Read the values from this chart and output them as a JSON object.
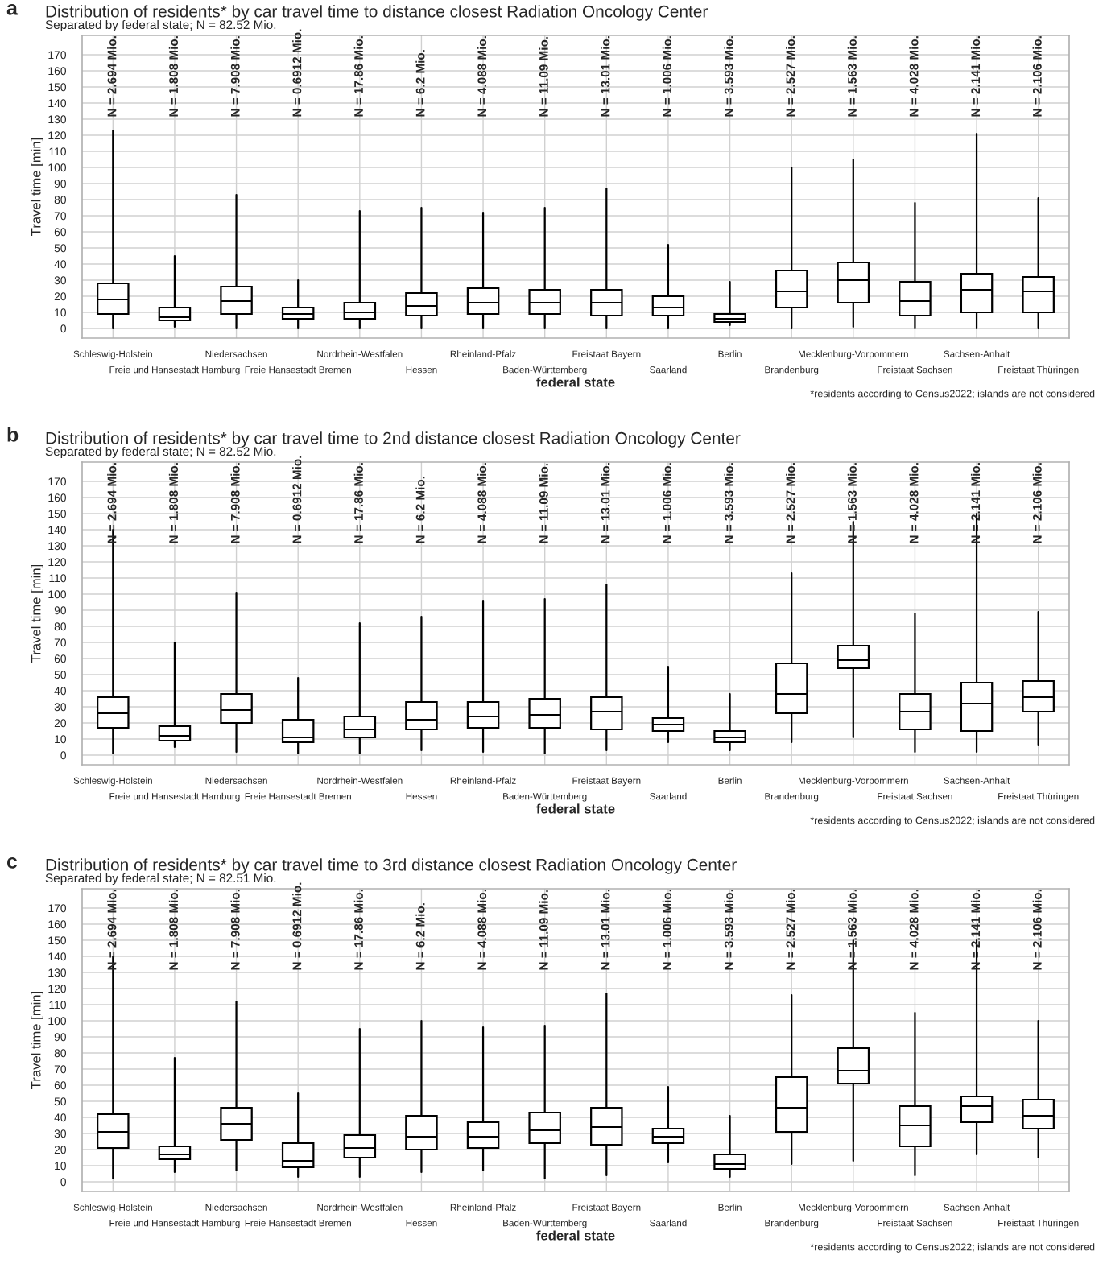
{
  "chart_data": [
    {
      "type": "box",
      "title": "Distribution of residents* by car travel time to distance closest Radiation Oncology Center",
      "subtitle": "Separated by federal state; N = 82.52 Mio.",
      "xlabel": "federal state",
      "ylabel": "Travel time [min]",
      "categories": [
        "Schleswig-Holstein",
        "Freie und Hansestadt Hamburg",
        "Niedersachsen",
        "Freie Hansestadt Bremen",
        "Nordrhein-Westfalen",
        "Hessen",
        "Rheinland-Pfalz",
        "Baden-Württemberg",
        "Freistaat Bayern",
        "Saarland",
        "Berlin",
        "Brandenburg",
        "Mecklenburg-Vorpommern",
        "Freistaat Sachsen",
        "Sachsen-Anhalt",
        "Freistaat Thüringen"
      ],
      "boxes": [
        {
          "low": 0,
          "q1": 9,
          "median": 18,
          "q3": 28,
          "high": 123
        },
        {
          "low": 1,
          "q1": 5,
          "median": 7,
          "q3": 13,
          "high": 45
        },
        {
          "low": 0,
          "q1": 9,
          "median": 17,
          "q3": 26,
          "high": 83
        },
        {
          "low": 0,
          "q1": 6,
          "median": 9,
          "q3": 13,
          "high": 30
        },
        {
          "low": 0,
          "q1": 6,
          "median": 10,
          "q3": 16,
          "high": 73
        },
        {
          "low": 0,
          "q1": 8,
          "median": 14,
          "q3": 22,
          "high": 75
        },
        {
          "low": 0,
          "q1": 9,
          "median": 16,
          "q3": 25,
          "high": 72
        },
        {
          "low": 0,
          "q1": 9,
          "median": 16,
          "q3": 24,
          "high": 75
        },
        {
          "low": 0,
          "q1": 8,
          "median": 16,
          "q3": 24,
          "high": 87
        },
        {
          "low": 0,
          "q1": 8,
          "median": 13,
          "q3": 20,
          "high": 52
        },
        {
          "low": 2,
          "q1": 4,
          "median": 6,
          "q3": 9,
          "high": 29
        },
        {
          "low": 0,
          "q1": 13,
          "median": 23,
          "q3": 36,
          "high": 100
        },
        {
          "low": 1,
          "q1": 16,
          "median": 30,
          "q3": 41,
          "high": 105
        },
        {
          "low": 0,
          "q1": 8,
          "median": 17,
          "q3": 29,
          "high": 78
        },
        {
          "low": 0,
          "q1": 10,
          "median": 24,
          "q3": 34,
          "high": 121
        },
        {
          "low": 0,
          "q1": 10,
          "median": 23,
          "q3": 32,
          "high": 81
        }
      ],
      "ylim": [
        -6,
        182
      ],
      "yticks": [
        0,
        10,
        20,
        30,
        40,
        50,
        60,
        70,
        80,
        90,
        100,
        110,
        120,
        130,
        140,
        150,
        160,
        170
      ],
      "grid": true,
      "annotations": [
        "a",
        "N = 2.694 Mio.",
        "N = 1.808 Mio.",
        "N = 7.908 Mio.",
        "N = 0.6912 Mio.",
        "N = 17.86 Mio.",
        "N = 6.2 Mio.",
        "N = 4.088 Mio.",
        "N = 11.09 Mio.",
        "N = 13.01 Mio.",
        "N = 1.006 Mio.",
        "N = 3.593 Mio.",
        "N = 2.527 Mio.",
        "N = 1.563 Mio.",
        "N = 4.028 Mio.",
        "N = 2.141 Mio.",
        "N = 2.106 Mio.",
        "*residents according to Census2022; islands are not considered"
      ]
    },
    {
      "type": "box",
      "title": "Distribution of residents* by car travel time to 2nd distance closest Radiation Oncology Center",
      "subtitle": "Separated by federal state; N = 82.52 Mio.",
      "xlabel": "federal state",
      "ylabel": "Travel time [min]",
      "categories": [
        "Schleswig-Holstein",
        "Freie und Hansestadt Hamburg",
        "Niedersachsen",
        "Freie Hansestadt Bremen",
        "Nordrhein-Westfalen",
        "Hessen",
        "Rheinland-Pfalz",
        "Baden-Württemberg",
        "Freistaat Bayern",
        "Saarland",
        "Berlin",
        "Brandenburg",
        "Mecklenburg-Vorpommern",
        "Freistaat Sachsen",
        "Sachsen-Anhalt",
        "Freistaat Thüringen"
      ],
      "boxes": [
        {
          "low": 1,
          "q1": 17,
          "median": 26,
          "q3": 36,
          "high": 140
        },
        {
          "low": 5,
          "q1": 9,
          "median": 12,
          "q3": 18,
          "high": 70
        },
        {
          "low": 2,
          "q1": 20,
          "median": 28,
          "q3": 38,
          "high": 101
        },
        {
          "low": 1,
          "q1": 8,
          "median": 11,
          "q3": 22,
          "high": 48
        },
        {
          "low": 1,
          "q1": 11,
          "median": 16,
          "q3": 24,
          "high": 82
        },
        {
          "low": 3,
          "q1": 16,
          "median": 22,
          "q3": 33,
          "high": 86
        },
        {
          "low": 2,
          "q1": 17,
          "median": 24,
          "q3": 33,
          "high": 96
        },
        {
          "low": 1,
          "q1": 17,
          "median": 25,
          "q3": 35,
          "high": 97
        },
        {
          "low": 3,
          "q1": 16,
          "median": 27,
          "q3": 36,
          "high": 106
        },
        {
          "low": 8,
          "q1": 15,
          "median": 19,
          "q3": 23,
          "high": 55
        },
        {
          "low": 3,
          "q1": 8,
          "median": 11,
          "q3": 15,
          "high": 38
        },
        {
          "low": 8,
          "q1": 26,
          "median": 38,
          "q3": 57,
          "high": 113
        },
        {
          "low": 11,
          "q1": 54,
          "median": 59,
          "q3": 68,
          "high": 145
        },
        {
          "low": 2,
          "q1": 16,
          "median": 27,
          "q3": 38,
          "high": 88
        },
        {
          "low": 2,
          "q1": 15,
          "median": 32,
          "q3": 45,
          "high": 150
        },
        {
          "low": 6,
          "q1": 27,
          "median": 36,
          "q3": 46,
          "high": 89
        }
      ],
      "ylim": [
        -6,
        182
      ],
      "yticks": [
        0,
        10,
        20,
        30,
        40,
        50,
        60,
        70,
        80,
        90,
        100,
        110,
        120,
        130,
        140,
        150,
        160,
        170
      ],
      "grid": true,
      "annotations": [
        "b",
        "N = 2.694 Mio.",
        "N = 1.808 Mio.",
        "N = 7.908 Mio.",
        "N = 0.6912 Mio.",
        "N = 17.86 Mio.",
        "N = 6.2 Mio.",
        "N = 4.088 Mio.",
        "N = 11.09 Mio.",
        "N = 13.01 Mio.",
        "N = 1.006 Mio.",
        "N = 3.593 Mio.",
        "N = 2.527 Mio.",
        "N = 1.563 Mio.",
        "N = 4.028 Mio.",
        "N = 2.141 Mio.",
        "N = 2.106 Mio.",
        "*residents according to Census2022; islands are not considered"
      ]
    },
    {
      "type": "box",
      "title": "Distribution of residents* by car travel time to 3rd distance closest Radiation Oncology Center",
      "subtitle": "Separated by federal state; N = 82.51 Mio.",
      "xlabel": "federal state",
      "ylabel": "Travel time [min]",
      "categories": [
        "Schleswig-Holstein",
        "Freie und Hansestadt Hamburg",
        "Niedersachsen",
        "Freie Hansestadt Bremen",
        "Nordrhein-Westfalen",
        "Hessen",
        "Rheinland-Pfalz",
        "Baden-Württemberg",
        "Freistaat Bayern",
        "Saarland",
        "Berlin",
        "Brandenburg",
        "Mecklenburg-Vorpommern",
        "Freistaat Sachsen",
        "Sachsen-Anhalt",
        "Freistaat Thüringen"
      ],
      "boxes": [
        {
          "low": 2,
          "q1": 21,
          "median": 31,
          "q3": 42,
          "high": 140
        },
        {
          "low": 6,
          "q1": 14,
          "median": 17,
          "q3": 22,
          "high": 77
        },
        {
          "low": 7,
          "q1": 26,
          "median": 36,
          "q3": 46,
          "high": 112
        },
        {
          "low": 3,
          "q1": 9,
          "median": 13,
          "q3": 24,
          "high": 55
        },
        {
          "low": 3,
          "q1": 15,
          "median": 21,
          "q3": 29,
          "high": 95
        },
        {
          "low": 6,
          "q1": 20,
          "median": 28,
          "q3": 41,
          "high": 100
        },
        {
          "low": 7,
          "q1": 21,
          "median": 28,
          "q3": 37,
          "high": 96
        },
        {
          "low": 2,
          "q1": 24,
          "median": 32,
          "q3": 43,
          "high": 97
        },
        {
          "low": 4,
          "q1": 23,
          "median": 34,
          "q3": 46,
          "high": 117
        },
        {
          "low": 12,
          "q1": 24,
          "median": 28,
          "q3": 33,
          "high": 59
        },
        {
          "low": 3,
          "q1": 8,
          "median": 11,
          "q3": 17,
          "high": 41
        },
        {
          "low": 11,
          "q1": 31,
          "median": 46,
          "q3": 65,
          "high": 116
        },
        {
          "low": 13,
          "q1": 61,
          "median": 69,
          "q3": 83,
          "high": 150
        },
        {
          "low": 4,
          "q1": 22,
          "median": 35,
          "q3": 47,
          "high": 105
        },
        {
          "low": 17,
          "q1": 37,
          "median": 47,
          "q3": 53,
          "high": 150
        },
        {
          "low": 15,
          "q1": 33,
          "median": 41,
          "q3": 51,
          "high": 100
        }
      ],
      "ylim": [
        -6,
        182
      ],
      "yticks": [
        0,
        10,
        20,
        30,
        40,
        50,
        60,
        70,
        80,
        90,
        100,
        110,
        120,
        130,
        140,
        150,
        160,
        170
      ],
      "grid": true,
      "annotations": [
        "c",
        "N = 2.694 Mio.",
        "N = 1.808 Mio.",
        "N = 7.908 Mio.",
        "N = 0.6912 Mio.",
        "N = 17.86 Mio.",
        "N = 6.2 Mio.",
        "N = 4.088 Mio.",
        "N = 11.09 Mio.",
        "N = 13.01 Mio.",
        "N = 1.006 Mio.",
        "N = 3.593 Mio.",
        "N = 2.527 Mio.",
        "N = 1.563 Mio.",
        "N = 4.028 Mio.",
        "N = 2.141 Mio.",
        "N = 2.106 Mio.",
        "*residents according to Census2022; islands are not considered"
      ]
    }
  ]
}
